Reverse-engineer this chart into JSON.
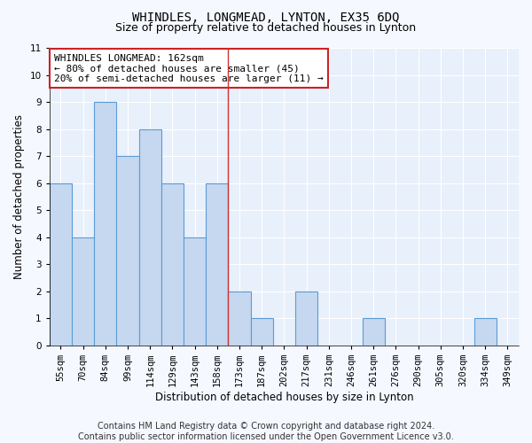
{
  "title": "WHINDLES, LONGMEAD, LYNTON, EX35 6DQ",
  "subtitle": "Size of property relative to detached houses in Lynton",
  "xlabel": "Distribution of detached houses by size in Lynton",
  "ylabel": "Number of detached properties",
  "footer_line1": "Contains HM Land Registry data © Crown copyright and database right 2024.",
  "footer_line2": "Contains public sector information licensed under the Open Government Licence v3.0.",
  "categories": [
    "55sqm",
    "70sqm",
    "84sqm",
    "99sqm",
    "114sqm",
    "129sqm",
    "143sqm",
    "158sqm",
    "173sqm",
    "187sqm",
    "202sqm",
    "217sqm",
    "231sqm",
    "246sqm",
    "261sqm",
    "276sqm",
    "290sqm",
    "305sqm",
    "320sqm",
    "334sqm",
    "349sqm"
  ],
  "values": [
    6,
    4,
    9,
    7,
    8,
    6,
    4,
    6,
    2,
    1,
    0,
    2,
    0,
    0,
    1,
    0,
    0,
    0,
    0,
    1,
    0
  ],
  "bar_color": "#c5d8f0",
  "bar_edge_color": "#5b9bd5",
  "vline_x": 7.5,
  "vline_color": "#cc3333",
  "annotation_text": "WHINDLES LONGMEAD: 162sqm\n← 80% of detached houses are smaller (45)\n20% of semi-detached houses are larger (11) →",
  "annotation_box_color": "#cc2222",
  "ylim": [
    0,
    11
  ],
  "yticks": [
    0,
    1,
    2,
    3,
    4,
    5,
    6,
    7,
    8,
    9,
    10,
    11
  ],
  "bg_color": "#e8f0fb",
  "fig_bg_color": "#f5f8ff",
  "grid_color": "#ffffff",
  "title_fontsize": 10,
  "subtitle_fontsize": 9,
  "axis_label_fontsize": 8.5,
  "tick_fontsize": 7.5,
  "footer_fontsize": 7,
  "ann_fontsize": 8
}
